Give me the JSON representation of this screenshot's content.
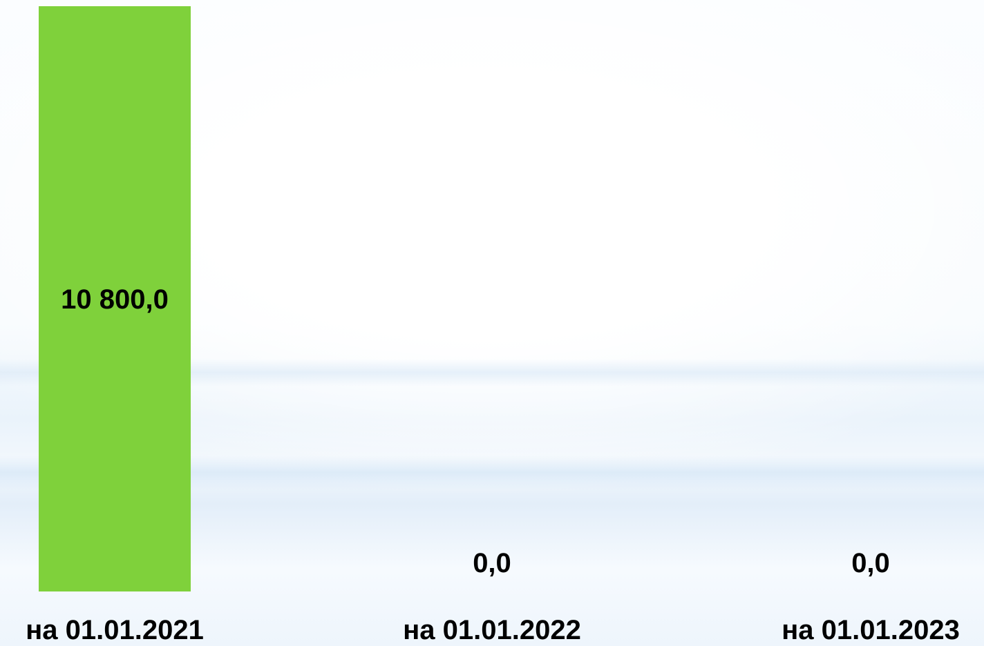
{
  "chart_data": {
    "type": "bar",
    "categories": [
      "на 01.01.2021",
      "на 01.01.2022",
      "на 01.01.2023"
    ],
    "values": [
      10800.0,
      0.0,
      0.0
    ],
    "data_labels": [
      "10 800,0",
      "0,0",
      "0,0"
    ],
    "ylim": [
      0,
      10800
    ],
    "grid": false,
    "legend": "none",
    "bar_color": "#7fd13b"
  }
}
